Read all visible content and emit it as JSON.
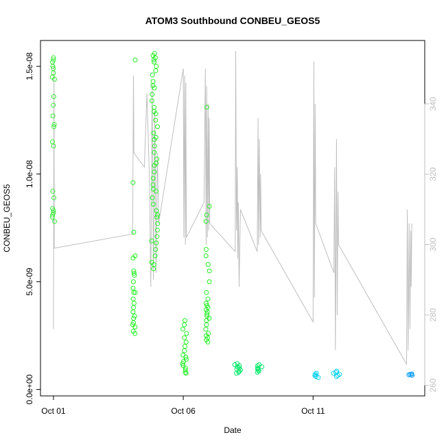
{
  "chart_data": {
    "type": "scatter",
    "title": "ATOM3 Southbound CONBEU_GEOS5",
    "xlabel": "Date",
    "ylabel": "CONBEU_GEOS5",
    "x_ticks": [
      "Oct 01",
      "Oct 06",
      "Oct 11"
    ],
    "y_ticks": [
      "0.0e+00",
      "5.0e-09",
      "1.0e-08",
      "1.5e-08"
    ],
    "y_tick_values": [
      0,
      5e-09,
      1e-08,
      1.5e-08
    ],
    "y2_ticks": [
      "260",
      "280",
      "300",
      "320",
      "340"
    ],
    "y2_tick_values": [
      260,
      280,
      300,
      320,
      340
    ],
    "grid": false,
    "colors": {
      "line": "#bebebe",
      "right_axis": "#bebebe",
      "points_green": "#00ff00",
      "points_green_mid": "#33ff55",
      "points_teal": "#00ee88",
      "points_cyan": "#00d8f0",
      "points_blue": "#0090ff"
    },
    "point_series": [
      {
        "day": 1.0,
        "spread": 0.05,
        "color": "#33ee33",
        "values": [
          15.4,
          15.3,
          15.2,
          15.0,
          14.9,
          14.7,
          14.5,
          14.4,
          13.6,
          13.2,
          12.7,
          12.3,
          12.2,
          11.5,
          11.3,
          9.2,
          8.9,
          8.4,
          8.3,
          8.2,
          8.1,
          8.0,
          7.8
        ]
      },
      {
        "day": 4.1,
        "spread": 0.05,
        "color": "#22ee22",
        "values": [
          15.3,
          9.6,
          7.3,
          6.2,
          6.1,
          5.5,
          5.4,
          5.3,
          5.0,
          4.7,
          4.5,
          4.5,
          4.2,
          4.0,
          3.8,
          3.6,
          3.4,
          3.3,
          3.1,
          3.0,
          2.9,
          2.7,
          2.6
        ]
      },
      {
        "day": 4.9,
        "spread": 0.12,
        "color": "#22ee22",
        "values": [
          15.6,
          15.5,
          15.4,
          15.2,
          15.0,
          14.8,
          14.6,
          14.3,
          14.0,
          13.7,
          13.4,
          13.1,
          12.8,
          12.5,
          12.2,
          11.9,
          11.6,
          11.3,
          11.0,
          10.7,
          10.4,
          10.1,
          9.8,
          9.5,
          9.2,
          8.9,
          8.6,
          8.3,
          8.0,
          7.7,
          7.4,
          7.1,
          6.8,
          6.5,
          6.2,
          5.9,
          5.6,
          15.3,
          14.1,
          12.9,
          11.7,
          10.5,
          9.3,
          8.1,
          6.9,
          5.8
        ]
      },
      {
        "day": 6.05,
        "spread": 0.08,
        "color": "#22ee22",
        "values": [
          3.2,
          3.0,
          2.8,
          2.6,
          2.4,
          2.2,
          2.0,
          1.8,
          1.6,
          1.5,
          1.4,
          1.3,
          1.2,
          1.1,
          1.0,
          0.9,
          0.8,
          0.75
        ]
      },
      {
        "day": 6.95,
        "spread": 0.08,
        "color": "#22ee22",
        "values": [
          13.1,
          8.5,
          8.1,
          7.8,
          6.5,
          6.2,
          5.8,
          5.5,
          5.0,
          4.5,
          4.2,
          4.0,
          3.9,
          3.8,
          3.7,
          3.6,
          3.5,
          3.4,
          3.3,
          3.2,
          3.0,
          2.8,
          2.6,
          2.5,
          2.4,
          2.3,
          2.2
        ]
      },
      {
        "day": 8.1,
        "spread": 0.12,
        "color": "#00e866",
        "values": [
          1.2,
          1.15,
          1.1,
          1.05,
          1.0,
          0.95,
          0.9,
          0.85,
          0.8,
          0.75
        ]
      },
      {
        "day": 8.95,
        "spread": 0.1,
        "color": "#00e866",
        "values": [
          1.15,
          1.1,
          1.05,
          1.0,
          0.95,
          0.9,
          0.85,
          0.8
        ]
      },
      {
        "day": 11.1,
        "spread": 0.12,
        "color": "#00d0ee",
        "values": [
          0.75,
          0.7,
          0.65,
          0.6,
          0.55
        ]
      },
      {
        "day": 11.9,
        "spread": 0.15,
        "color": "#00d0ee",
        "values": [
          0.85,
          0.8,
          0.75,
          0.7,
          0.65,
          0.6
        ]
      },
      {
        "day": 14.7,
        "spread": 0.12,
        "color": "#0098ff",
        "values": [
          0.72,
          0.7,
          0.68,
          0.66
        ]
      }
    ],
    "line_series": {
      "name": "",
      "axis": "right",
      "points": [
        [
          1.0,
          276
        ],
        [
          1.02,
          352
        ],
        [
          1.03,
          299
        ],
        [
          4.05,
          303
        ],
        [
          4.08,
          348
        ],
        [
          4.1,
          326
        ],
        [
          4.5,
          322
        ],
        [
          4.6,
          343
        ],
        [
          4.7,
          318
        ],
        [
          4.75,
          288
        ],
        [
          4.8,
          346
        ],
        [
          4.85,
          290
        ],
        [
          4.9,
          338
        ],
        [
          4.95,
          292
        ],
        [
          5.0,
          326
        ],
        [
          5.05,
          306
        ],
        [
          6.0,
          350
        ],
        [
          6.02,
          302
        ],
        [
          6.05,
          348
        ],
        [
          6.08,
          300
        ],
        [
          6.1,
          346
        ],
        [
          6.12,
          302
        ],
        [
          6.8,
          312
        ],
        [
          6.85,
          350
        ],
        [
          6.88,
          300
        ],
        [
          6.9,
          345
        ],
        [
          6.93,
          302
        ],
        [
          6.96,
          340
        ],
        [
          6.98,
          304
        ],
        [
          7.0,
          336
        ],
        [
          7.02,
          306
        ],
        [
          8.0,
          298
        ],
        [
          8.02,
          355
        ],
        [
          8.05,
          304
        ],
        [
          8.08,
          322
        ],
        [
          8.1,
          296
        ],
        [
          8.12,
          312
        ],
        [
          8.15,
          288
        ],
        [
          8.2,
          310
        ],
        [
          8.85,
          298
        ],
        [
          8.88,
          336
        ],
        [
          8.9,
          300
        ],
        [
          8.93,
          330
        ],
        [
          8.96,
          302
        ],
        [
          8.98,
          320
        ],
        [
          9.0,
          304
        ],
        [
          11.0,
          278
        ],
        [
          11.03,
          352
        ],
        [
          11.05,
          285
        ],
        [
          11.08,
          340
        ],
        [
          11.1,
          306
        ],
        [
          11.8,
          292
        ],
        [
          11.83,
          322
        ],
        [
          11.86,
          270
        ],
        [
          11.9,
          330
        ],
        [
          11.93,
          280
        ],
        [
          11.96,
          315
        ],
        [
          11.98,
          300
        ],
        [
          14.6,
          266
        ],
        [
          14.63,
          310
        ],
        [
          14.66,
          270
        ],
        [
          14.7,
          306
        ],
        [
          14.73,
          276
        ],
        [
          14.76,
          304
        ],
        [
          14.78,
          288
        ],
        [
          14.8,
          306
        ]
      ]
    },
    "x_range_days": [
      0.5,
      15.3
    ],
    "y_range": [
      -3e-10,
      1.62e-08
    ],
    "y2_range": [
      257,
      358
    ]
  }
}
